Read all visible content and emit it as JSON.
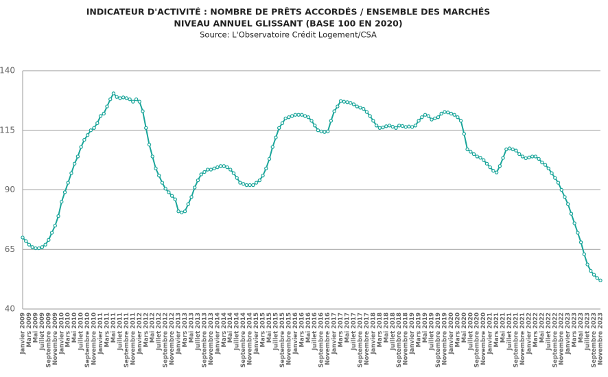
{
  "chart_data": {
    "type": "line",
    "title": "INDICATEUR D'ACTIVITÉ : NOMBRE DE PRÊTS ACCORDÉS / ENSEMBLE DES MARCHÉS",
    "subtitle": "NIVEAU ANNUEL GLISSANT (BASE 100 EN 2020)",
    "source": "Source: L'Observatoire Crédit Logement/CSA",
    "categories": [
      "Janvier 2009",
      null,
      "Mars 2009",
      null,
      "Mai 2009",
      null,
      "Juillet 2009",
      null,
      "Septembre 2009",
      null,
      "Novembre 2009",
      null,
      "Janvier 2010",
      null,
      "Mars 2010",
      null,
      "Mai 2010",
      null,
      "Juillet 2010",
      null,
      "Septembre 2010",
      null,
      "Novembre 2010",
      null,
      "Janvier 2011",
      null,
      "Mars 2011",
      null,
      "Mai 2011",
      null,
      "Juillet 2011",
      null,
      "Septembre 2011",
      null,
      "Novembre 2011",
      null,
      "Janvier 2012",
      null,
      "Mars 2012",
      null,
      "Mai 2012",
      null,
      "Juillet 2012",
      null,
      "Septembre 2012",
      null,
      "Novembre 2012",
      null,
      "Janvier 2013",
      null,
      "Mars 2013",
      null,
      "Mai 2013",
      null,
      "Juillet 2013",
      null,
      "Septembre 2013",
      null,
      "Novembre 2013",
      null,
      "Janvier 2014",
      null,
      "Mars 2014",
      null,
      "Mai 2014",
      null,
      "Juillet 2014",
      null,
      "Septembre 2014",
      null,
      "Novembre 2014",
      null,
      "Janvier 2015",
      null,
      "Mars 2015",
      null,
      "Mai 2015",
      null,
      "Juillet 2015",
      null,
      "Septembre 2015",
      null,
      "Novembre 2015",
      null,
      "Janvier 2016",
      null,
      "Mars 2016",
      null,
      "Mai 2016",
      null,
      "Juillet 2016",
      null,
      "Septembre 2016",
      null,
      "Novembre 2016",
      null,
      "Janvier 2017",
      null,
      "Mars 2017",
      null,
      "Mai 2017",
      null,
      "Juillet 2017",
      null,
      "Septembre 2017",
      null,
      "Novembre 2017",
      null,
      "Janvier 2018",
      null,
      "Mars 2018",
      null,
      "Mai 2018",
      null,
      "Juillet 2018",
      null,
      "Septembre 2018",
      null,
      "Novembre 2018",
      null,
      "Janvier 2019",
      null,
      "Mars 2019",
      null,
      "Mai 2019",
      null,
      "Juillet 2019",
      null,
      "Septembre 2019",
      null,
      "Novembre 2019",
      null,
      "Janvier 2020",
      null,
      "Mars 2020",
      null,
      "Mai 2020",
      null,
      "Juillet 2020",
      null,
      "Septembre 2020",
      null,
      "Novembre 2020",
      null,
      "Janvier 2021",
      null,
      "Mars 2021",
      null,
      "Mai 2021",
      null,
      "Juillet 2021",
      null,
      "Septembre 2021",
      null,
      "Novembre 2021",
      null,
      "Janvier 2022",
      null,
      "Mars 2022",
      null,
      "Mai 2022",
      null,
      "Juillet 2022",
      null,
      "Septembre 2022",
      null,
      "Novembre 2022",
      null,
      "Janvier 2023",
      null,
      "Mars 2023",
      null,
      "Mai 2023",
      null,
      "Juillet 2023",
      null,
      "Septembre 2023",
      null,
      "Novembre 2023"
    ],
    "values": [
      70,
      68.5,
      67,
      66,
      65.5,
      65.5,
      66,
      67,
      69,
      72,
      75,
      79,
      85,
      89,
      93,
      97,
      101,
      104,
      108,
      111,
      113,
      115,
      116,
      118,
      121,
      122,
      125,
      128,
      130.5,
      129,
      128.5,
      128.8,
      128.5,
      128,
      127,
      128,
      127,
      123,
      116,
      109,
      104,
      99,
      96,
      93,
      90.5,
      89,
      87.5,
      86,
      81,
      80.5,
      81,
      84,
      87,
      91,
      94,
      96.5,
      97.5,
      98.5,
      98.5,
      99,
      99.5,
      100,
      100,
      99.5,
      98.5,
      97,
      95,
      93,
      92.5,
      92,
      92,
      92,
      93,
      94,
      96,
      99,
      103,
      108,
      112,
      116,
      118,
      120,
      120.5,
      121,
      121.5,
      121.5,
      121.5,
      121,
      120.5,
      119,
      117,
      115,
      114.5,
      114.3,
      114.5,
      119,
      123,
      125,
      127.3,
      127,
      126.8,
      126.5,
      125.9,
      125,
      124.5,
      124,
      122.7,
      121,
      119,
      117,
      116,
      116.2,
      116.7,
      117,
      116.5,
      116,
      117,
      116.8,
      116.4,
      116.6,
      116.4,
      117,
      119,
      120.5,
      121.5,
      121,
      119.5,
      120,
      120.5,
      122,
      122.7,
      122.5,
      122,
      121.5,
      120.5,
      119,
      113.5,
      107,
      106,
      105,
      104,
      103.5,
      102.5,
      101,
      99.5,
      98,
      97.3,
      100,
      103.4,
      107,
      107.4,
      107,
      106.5,
      105,
      104,
      103.3,
      103.6,
      104,
      104,
      103,
      101.5,
      100.5,
      99,
      97,
      95,
      93,
      90,
      87,
      84,
      80,
      76,
      72,
      68,
      63,
      58.7,
      56,
      54.4,
      53,
      52
    ],
    "color": "#1aa59a",
    "ylim": [
      40,
      140
    ],
    "yticks": [
      40,
      65,
      90,
      115,
      140
    ],
    "grid": true
  }
}
